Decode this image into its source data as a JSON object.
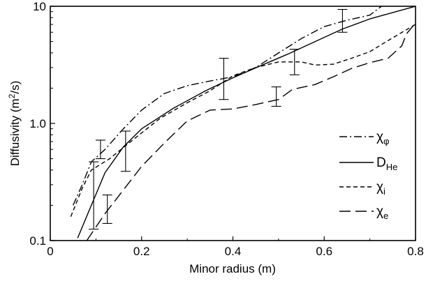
{
  "chart_data": {
    "type": "line",
    "title": "",
    "xlabel": "Minor radius (m)",
    "ylabel": "Diffusivity (m²/s)",
    "ylabel_parts": {
      "pre": "Diffusivity (m",
      "sup": "2",
      "post": "/s)"
    },
    "xlim": [
      0,
      0.8
    ],
    "ylim": [
      0.1,
      10
    ],
    "yscale": "log",
    "grid": false,
    "legend_position": "right",
    "x_ticks": [
      {
        "value": 0,
        "label": "0"
      },
      {
        "value": 0.2,
        "label": "0.2"
      },
      {
        "value": 0.4,
        "label": "0.4"
      },
      {
        "value": 0.6,
        "label": "0.6"
      },
      {
        "value": 0.8,
        "label": "0.8"
      }
    ],
    "y_ticks": [
      {
        "value": 0.1,
        "label": "0.1"
      },
      {
        "value": 1,
        "label": "1.0"
      },
      {
        "value": 10,
        "label": "10"
      }
    ],
    "series": [
      {
        "name": "χφ",
        "label_main": "χ",
        "label_sub": "φ",
        "dash": "dashdot",
        "color": "#000000",
        "points": [
          [
            0.05,
            0.2
          ],
          [
            0.07,
            0.3
          ],
          [
            0.09,
            0.47
          ],
          [
            0.12,
            0.6
          ],
          [
            0.16,
            0.9
          ],
          [
            0.2,
            1.3
          ],
          [
            0.25,
            1.8
          ],
          [
            0.3,
            2.1
          ],
          [
            0.35,
            2.3
          ],
          [
            0.4,
            2.5
          ],
          [
            0.45,
            3.0
          ],
          [
            0.5,
            4.0
          ],
          [
            0.55,
            5.3
          ],
          [
            0.6,
            6.7
          ],
          [
            0.65,
            7.6
          ],
          [
            0.7,
            8.4
          ],
          [
            0.73,
            10.3
          ]
        ]
      },
      {
        "name": "DHe",
        "label_main": "D",
        "label_sub": "He",
        "dash": "solid",
        "color": "#000000",
        "points": [
          [
            0.06,
            0.105
          ],
          [
            0.09,
            0.2
          ],
          [
            0.12,
            0.38
          ],
          [
            0.16,
            0.63
          ],
          [
            0.2,
            0.9
          ],
          [
            0.27,
            1.35
          ],
          [
            0.34,
            1.9
          ],
          [
            0.4,
            2.45
          ],
          [
            0.46,
            3.1
          ],
          [
            0.52,
            3.9
          ],
          [
            0.58,
            5.0
          ],
          [
            0.64,
            6.4
          ],
          [
            0.7,
            7.8
          ],
          [
            0.8,
            10.0
          ]
        ]
      },
      {
        "name": "χi",
        "label_main": "χ",
        "label_sub": "i",
        "dash": "dashed",
        "color": "#000000",
        "points": [
          [
            0.045,
            0.16
          ],
          [
            0.07,
            0.28
          ],
          [
            0.09,
            0.4
          ],
          [
            0.13,
            0.5
          ],
          [
            0.18,
            0.72
          ],
          [
            0.24,
            1.1
          ],
          [
            0.3,
            1.5
          ],
          [
            0.35,
            1.9
          ],
          [
            0.4,
            2.55
          ],
          [
            0.45,
            3.0
          ],
          [
            0.5,
            3.35
          ],
          [
            0.55,
            3.35
          ],
          [
            0.58,
            3.15
          ],
          [
            0.62,
            3.2
          ],
          [
            0.66,
            3.6
          ],
          [
            0.7,
            4.1
          ],
          [
            0.74,
            5.1
          ],
          [
            0.78,
            6.3
          ],
          [
            0.8,
            7.0
          ]
        ]
      },
      {
        "name": "χe",
        "label_main": "χ",
        "label_sub": "e",
        "dash": "longdash",
        "color": "#000000",
        "points": [
          [
            0.08,
            0.1
          ],
          [
            0.12,
            0.17
          ],
          [
            0.16,
            0.27
          ],
          [
            0.2,
            0.43
          ],
          [
            0.25,
            0.68
          ],
          [
            0.3,
            1.05
          ],
          [
            0.35,
            1.3
          ],
          [
            0.4,
            1.33
          ],
          [
            0.45,
            1.45
          ],
          [
            0.5,
            1.6
          ],
          [
            0.53,
            1.95
          ],
          [
            0.58,
            2.15
          ],
          [
            0.62,
            2.5
          ],
          [
            0.66,
            2.95
          ],
          [
            0.7,
            3.3
          ],
          [
            0.74,
            3.6
          ],
          [
            0.77,
            4.6
          ],
          [
            0.78,
            5.8
          ],
          [
            0.8,
            7.2
          ]
        ]
      }
    ],
    "error_bars": [
      {
        "x": 0.095,
        "low": 0.125,
        "high": 0.47
      },
      {
        "x": 0.11,
        "low": 0.5,
        "high": 0.72
      },
      {
        "x": 0.125,
        "low": 0.14,
        "high": 0.245
      },
      {
        "x": 0.165,
        "low": 0.39,
        "high": 0.86
      },
      {
        "x": 0.38,
        "low": 1.6,
        "high": 3.6
      },
      {
        "x": 0.495,
        "low": 1.4,
        "high": 2.05
      },
      {
        "x": 0.535,
        "low": 2.6,
        "high": 4.3
      },
      {
        "x": 0.64,
        "low": 6.0,
        "high": 9.4
      }
    ]
  }
}
